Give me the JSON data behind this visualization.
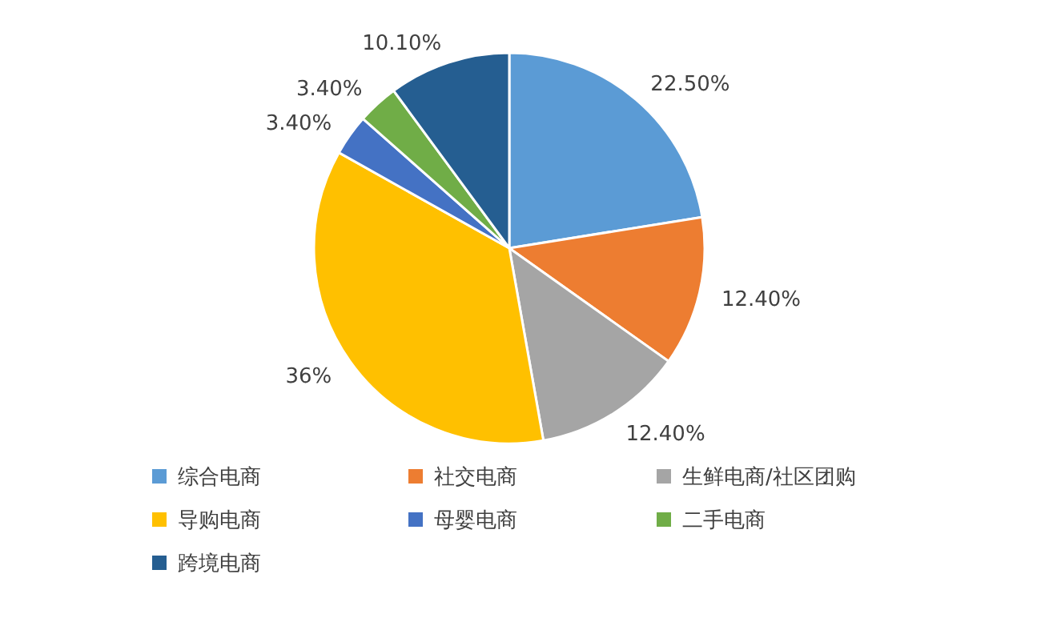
{
  "chart_data": {
    "type": "pie",
    "categories": [
      "综合电商",
      "社交电商",
      "生鲜电商/社区团购",
      "导购电商",
      "母婴电商",
      "二手电商",
      "跨境电商"
    ],
    "values": [
      22.5,
      12.4,
      12.4,
      36,
      3.4,
      3.4,
      10.1
    ],
    "value_labels": [
      "22.50%",
      "12.40%",
      "12.40%",
      "36%",
      "3.40%",
      "3.40%",
      "10.10%"
    ],
    "colors": [
      "#5b9bd5",
      "#ed7d31",
      "#a5a5a5",
      "#ffc000",
      "#4472c4",
      "#70ad47",
      "#255e91"
    ],
    "legend": "bottom"
  }
}
